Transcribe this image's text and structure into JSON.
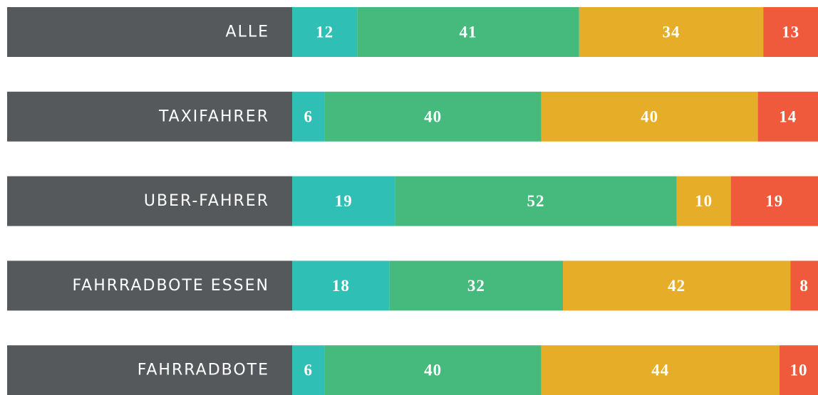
{
  "chart_data": {
    "type": "bar",
    "orientation": "horizontal",
    "stacked": true,
    "categories": [
      "ALLE",
      "TAXIFAHRER",
      "UBER-FAHRER",
      "FAHRRADBOTE ESSEN",
      "FAHRRADBOTE"
    ],
    "category_color": "#55595c",
    "xlim": [
      0,
      100
    ],
    "series": [
      {
        "color": "#2fbfb4",
        "values": [
          12,
          6,
          19,
          18,
          6
        ]
      },
      {
        "color": "#46ba7d",
        "values": [
          41,
          40,
          52,
          32,
          40
        ]
      },
      {
        "color": "#e6ad28",
        "values": [
          34,
          40,
          10,
          42,
          44
        ]
      },
      {
        "color": "#ef5a3c",
        "values": [
          13,
          14,
          19,
          8,
          10
        ]
      }
    ]
  }
}
